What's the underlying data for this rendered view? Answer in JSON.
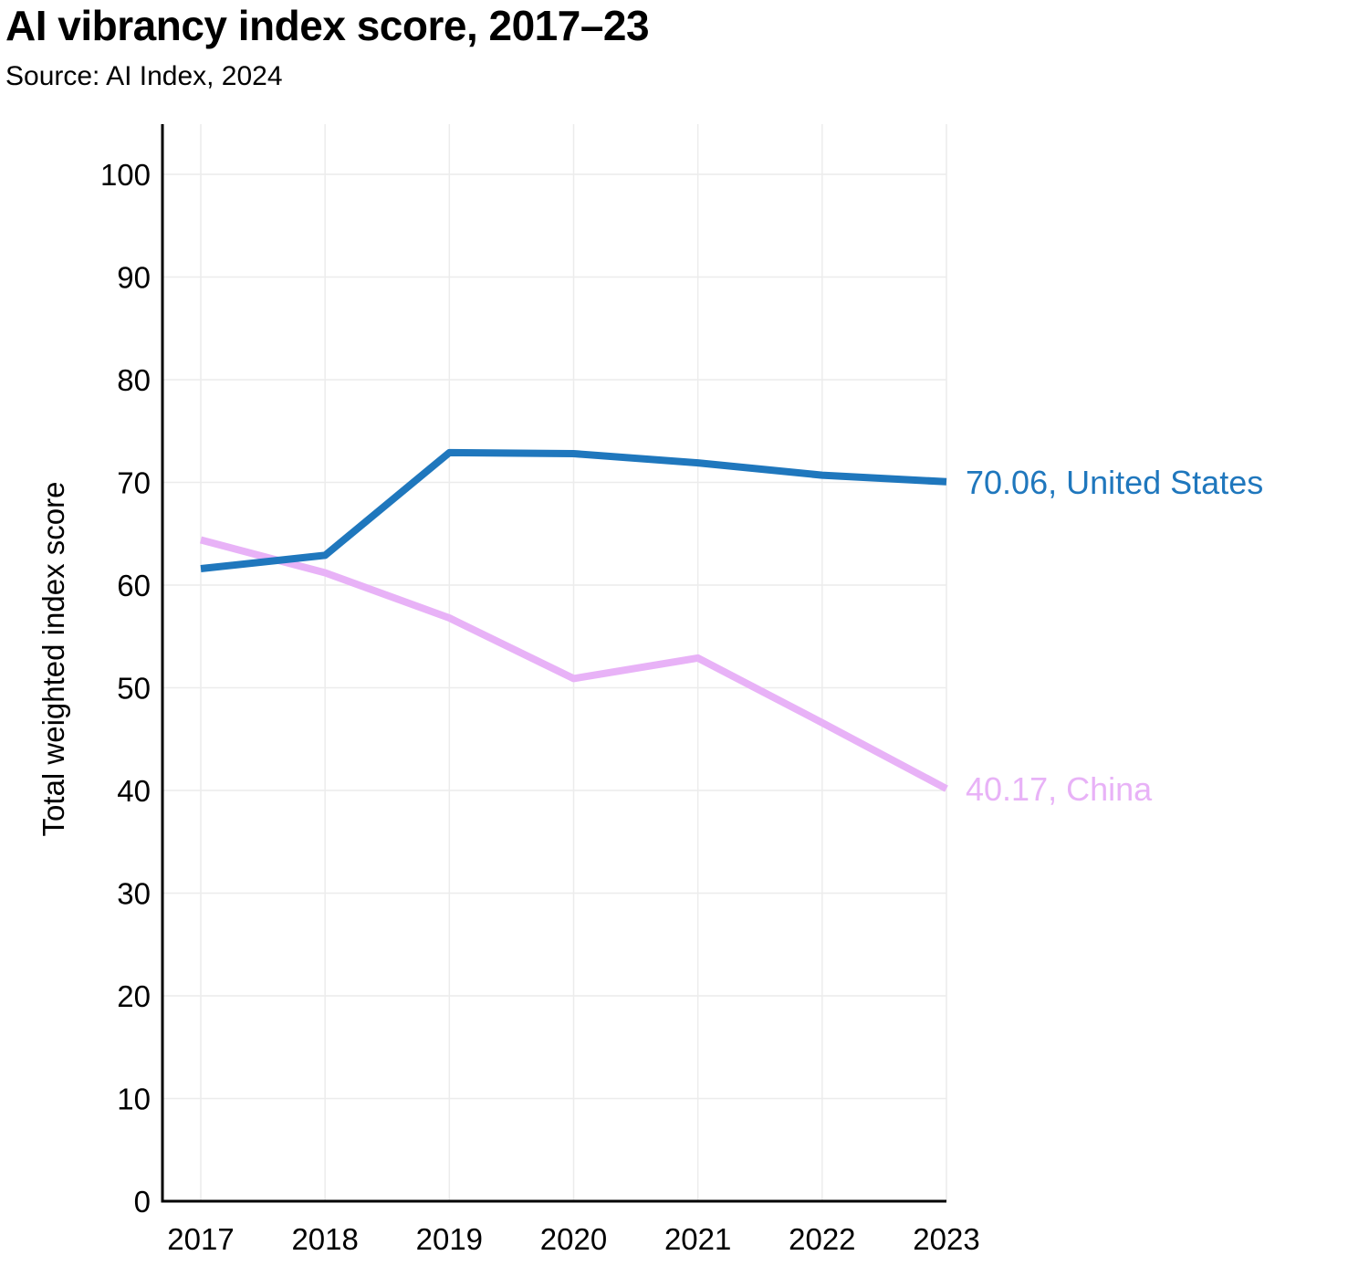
{
  "header": {
    "title": "AI vibrancy index score, 2017–23",
    "subtitle": "Source: AI Index, 2024"
  },
  "chart_data": {
    "type": "line",
    "title": "AI vibrancy index score, 2017–23",
    "subtitle": "Source: AI Index, 2024",
    "xlabel": "",
    "ylabel": "Total weighted index score",
    "x": [
      "2017",
      "2018",
      "2019",
      "2020",
      "2021",
      "2022",
      "2023"
    ],
    "ylim": [
      0,
      105
    ],
    "yticks": [
      0,
      10,
      20,
      30,
      40,
      50,
      60,
      70,
      80,
      90,
      100
    ],
    "grid": true,
    "legend": "none",
    "series": [
      {
        "name": "United States",
        "color": "#1f77bd",
        "values": [
          61.6,
          62.9,
          72.9,
          72.8,
          71.9,
          70.7,
          70.06
        ],
        "end_label": "70.06, United States"
      },
      {
        "name": "China",
        "color": "#e8b2f7",
        "values": [
          64.4,
          61.2,
          56.8,
          50.9,
          52.9,
          46.6,
          40.17
        ],
        "end_label": "40.17, China"
      }
    ]
  }
}
